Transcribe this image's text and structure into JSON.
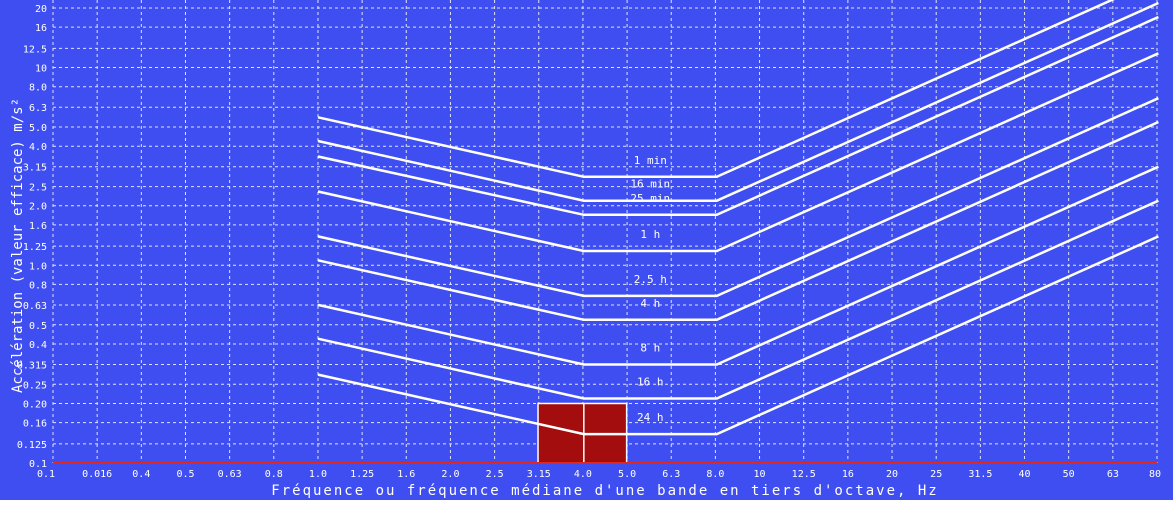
{
  "chart_data": {
    "type": "line",
    "title": "",
    "xlabel": "Fréquence ou fréquence médiane d'une bande en tiers d'octave, Hz",
    "ylabel": "Accélération (valeur efficace) m/s²",
    "x_scale": "log",
    "y_scale": "log",
    "xlim": [
      0.1,
      80
    ],
    "ylim": [
      0.1,
      20
    ],
    "grid": true,
    "x_ticks": [
      "0.1",
      "0.016",
      "0.4",
      "0.5",
      "0.63",
      "0.8",
      "1.0",
      "1.25",
      "1.6",
      "2.0",
      "2.5",
      "3.15",
      "4.0",
      "5.0",
      "6.3",
      "8.0",
      "10",
      "12.5",
      "16",
      "20",
      "25",
      "31.5",
      "40",
      "50",
      "63",
      "80"
    ],
    "y_ticks": [
      "20",
      "16",
      "12.5",
      "10",
      "8.0",
      "6.3",
      "5.0",
      "4.0",
      "3.15",
      "2.5",
      "2.0",
      "1.6",
      "1.25",
      "1.0",
      "0.8",
      "0.63",
      "0.5",
      "0.4",
      "0.315",
      "0.25",
      "0.20",
      "0.16",
      "0.125",
      "0.1"
    ],
    "series": [
      {
        "name": "1 min",
        "x": [
          1,
          4,
          8,
          80
        ],
        "y": [
          5.6,
          2.8,
          2.8,
          28
        ]
      },
      {
        "name": "16 min",
        "x": [
          1,
          4,
          8,
          80
        ],
        "y": [
          4.25,
          2.12,
          2.12,
          21.2
        ]
      },
      {
        "name": "25 min",
        "x": [
          1,
          4,
          8,
          80
        ],
        "y": [
          3.55,
          1.8,
          1.8,
          18
        ]
      },
      {
        "name": "1 h",
        "x": [
          1,
          4,
          8,
          80
        ],
        "y": [
          2.36,
          1.18,
          1.18,
          11.8
        ]
      },
      {
        "name": "2.5 h",
        "x": [
          1,
          4,
          8,
          80
        ],
        "y": [
          1.4,
          0.7,
          0.7,
          7.0
        ]
      },
      {
        "name": "4 h",
        "x": [
          1,
          4,
          8,
          80
        ],
        "y": [
          1.06,
          0.53,
          0.53,
          5.3
        ]
      },
      {
        "name": "8 h",
        "x": [
          1,
          4,
          8,
          80
        ],
        "y": [
          0.63,
          0.315,
          0.315,
          3.15
        ]
      },
      {
        "name": "16 h",
        "x": [
          1,
          4,
          8,
          80
        ],
        "y": [
          0.425,
          0.212,
          0.212,
          2.12
        ]
      },
      {
        "name": "24 h",
        "x": [
          1,
          4,
          8,
          80
        ],
        "y": [
          0.28,
          0.14,
          0.14,
          1.4
        ]
      }
    ],
    "highlight_region": {
      "x": [
        3.15,
        5.0
      ],
      "y": [
        0.1,
        0.2
      ],
      "color": "#a30d0d",
      "divider_x": 4.0,
      "divider_y": 0.14
    },
    "colors": {
      "background": "#3e4ef0",
      "lines": "#ffffff",
      "axis_line": "#e0281f",
      "highlight": "#a30d0d"
    }
  }
}
